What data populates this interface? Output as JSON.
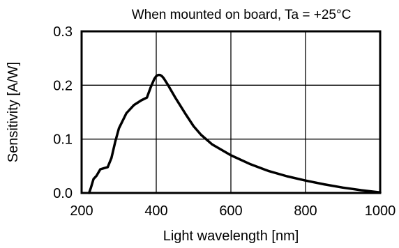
{
  "chart_data": {
    "type": "line",
    "title": "When mounted on board, Ta = +25°C",
    "xlabel": "Light wavelength [nm]",
    "ylabel": "Sensitivity [A/W]",
    "xlim": [
      200,
      1000
    ],
    "ylim": [
      0,
      0.3
    ],
    "x_ticks": [
      "200",
      "400",
      "600",
      "800",
      "1000"
    ],
    "y_ticks": [
      "0.0",
      "0.1",
      "0.2",
      "0.3"
    ],
    "grid": true,
    "series": [
      {
        "x": [
          220,
          225,
          232,
          240,
          250,
          260,
          270,
          280,
          290,
          300,
          320,
          340,
          360,
          375,
          385,
          395,
          400,
          405,
          410,
          415,
          420,
          430,
          450,
          480,
          500,
          520,
          550,
          600,
          650,
          700,
          750,
          800,
          850,
          900,
          950,
          1000
        ],
        "y": [
          0.0,
          0.01,
          0.026,
          0.032,
          0.044,
          0.046,
          0.048,
          0.065,
          0.095,
          0.12,
          0.148,
          0.163,
          0.172,
          0.177,
          0.196,
          0.212,
          0.217,
          0.219,
          0.219,
          0.217,
          0.213,
          0.202,
          0.178,
          0.145,
          0.124,
          0.108,
          0.09,
          0.07,
          0.054,
          0.041,
          0.031,
          0.023,
          0.016,
          0.01,
          0.005,
          0.001
        ]
      }
    ]
  }
}
